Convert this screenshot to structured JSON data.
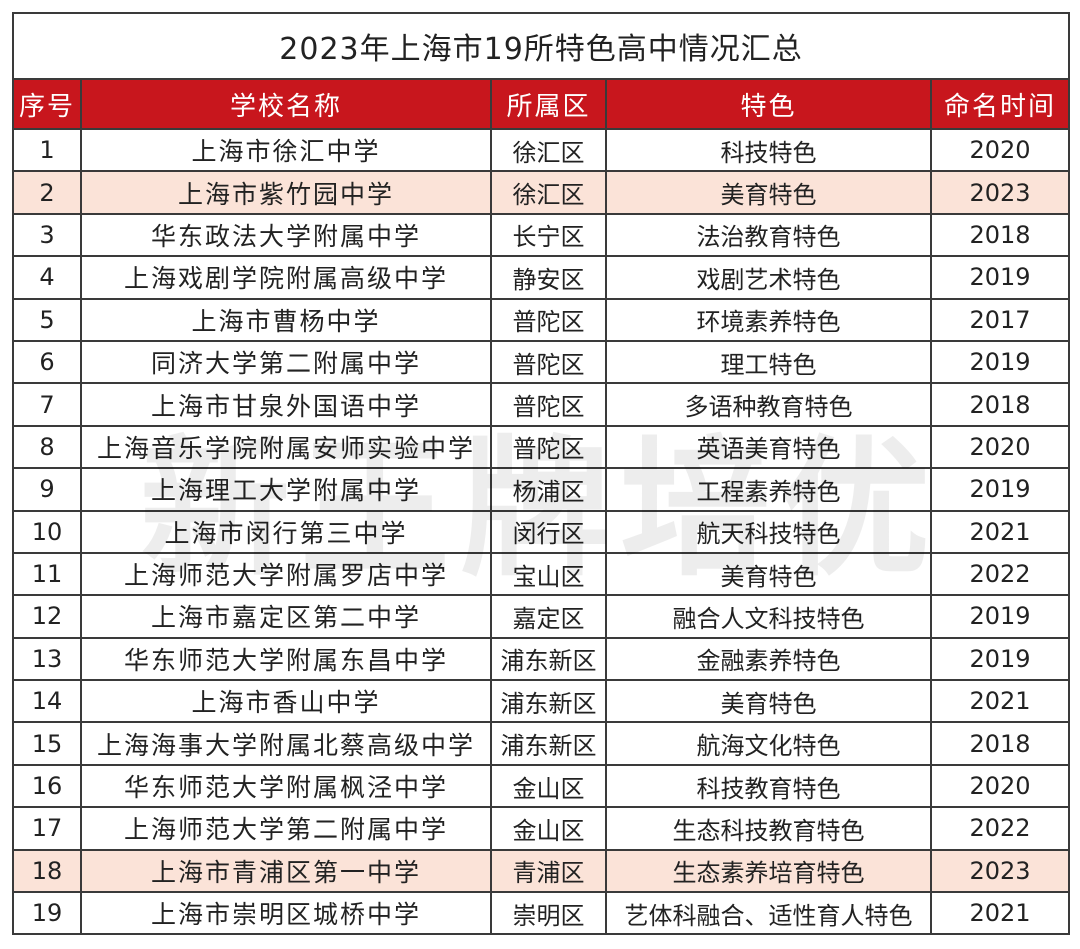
{
  "title": "2023年上海市19所特色高中情况汇总",
  "headers": [
    "序号",
    "学校名称",
    "所属区",
    "特色",
    "命名时间"
  ],
  "rows": [
    {
      "no": "1",
      "name": "上海市徐汇中学",
      "district": "徐汇区",
      "feature": "科技特色",
      "year": "2020",
      "highlight": false
    },
    {
      "no": "2",
      "name": "上海市紫竹园中学",
      "district": "徐汇区",
      "feature": "美育特色",
      "year": "2023",
      "highlight": true
    },
    {
      "no": "3",
      "name": "华东政法大学附属中学",
      "district": "长宁区",
      "feature": "法治教育特色",
      "year": "2018",
      "highlight": false
    },
    {
      "no": "4",
      "name": "上海戏剧学院附属高级中学",
      "district": "静安区",
      "feature": "戏剧艺术特色",
      "year": "2019",
      "highlight": false
    },
    {
      "no": "5",
      "name": "上海市曹杨中学",
      "district": "普陀区",
      "feature": "环境素养特色",
      "year": "2017",
      "highlight": false
    },
    {
      "no": "6",
      "name": "同济大学第二附属中学",
      "district": "普陀区",
      "feature": "理工特色",
      "year": "2019",
      "highlight": false
    },
    {
      "no": "7",
      "name": "上海市甘泉外国语中学",
      "district": "普陀区",
      "feature": "多语种教育特色",
      "year": "2018",
      "highlight": false
    },
    {
      "no": "8",
      "name": "上海音乐学院附属安师实验中学",
      "district": "普陀区",
      "feature": "英语美育特色",
      "year": "2020",
      "highlight": false
    },
    {
      "no": "9",
      "name": "上海理工大学附属中学",
      "district": "杨浦区",
      "feature": "工程素养特色",
      "year": "2019",
      "highlight": false
    },
    {
      "no": "10",
      "name": "上海市闵行第三中学",
      "district": "闵行区",
      "feature": "航天科技特色",
      "year": "2021",
      "highlight": false
    },
    {
      "no": "11",
      "name": "上海师范大学附属罗店中学",
      "district": "宝山区",
      "feature": "美育特色",
      "year": "2022",
      "highlight": false
    },
    {
      "no": "12",
      "name": "上海市嘉定区第二中学",
      "district": "嘉定区",
      "feature": "融合人文科技特色",
      "year": "2019",
      "highlight": false
    },
    {
      "no": "13",
      "name": "华东师范大学附属东昌中学",
      "district": "浦东新区",
      "feature": "金融素养特色",
      "year": "2019",
      "highlight": false
    },
    {
      "no": "14",
      "name": "上海市香山中学",
      "district": "浦东新区",
      "feature": "美育特色",
      "year": "2021",
      "highlight": false
    },
    {
      "no": "15",
      "name": "上海海事大学附属北蔡高级中学",
      "district": "浦东新区",
      "feature": "航海文化特色",
      "year": "2018",
      "highlight": false
    },
    {
      "no": "16",
      "name": "华东师范大学附属枫泾中学",
      "district": "金山区",
      "feature": "科技教育特色",
      "year": "2020",
      "highlight": false
    },
    {
      "no": "17",
      "name": "上海师范大学第二附属中学",
      "district": "金山区",
      "feature": "生态科技教育特色",
      "year": "2022",
      "highlight": false
    },
    {
      "no": "18",
      "name": "上海市青浦区第一中学",
      "district": "青浦区",
      "feature": "生态素养培育特色",
      "year": "2023",
      "highlight": true
    },
    {
      "no": "19",
      "name": "上海市崇明区城桥中学",
      "district": "崇明区",
      "feature": "艺体科融合、适性育人特色",
      "year": "2021",
      "highlight": false
    }
  ],
  "watermark": "新王牌培优",
  "colors": {
    "header_bg": "#c8161d",
    "header_text": "#ffffff",
    "highlight_bg": "#fbe3d8",
    "border": "#3a3a3a"
  }
}
